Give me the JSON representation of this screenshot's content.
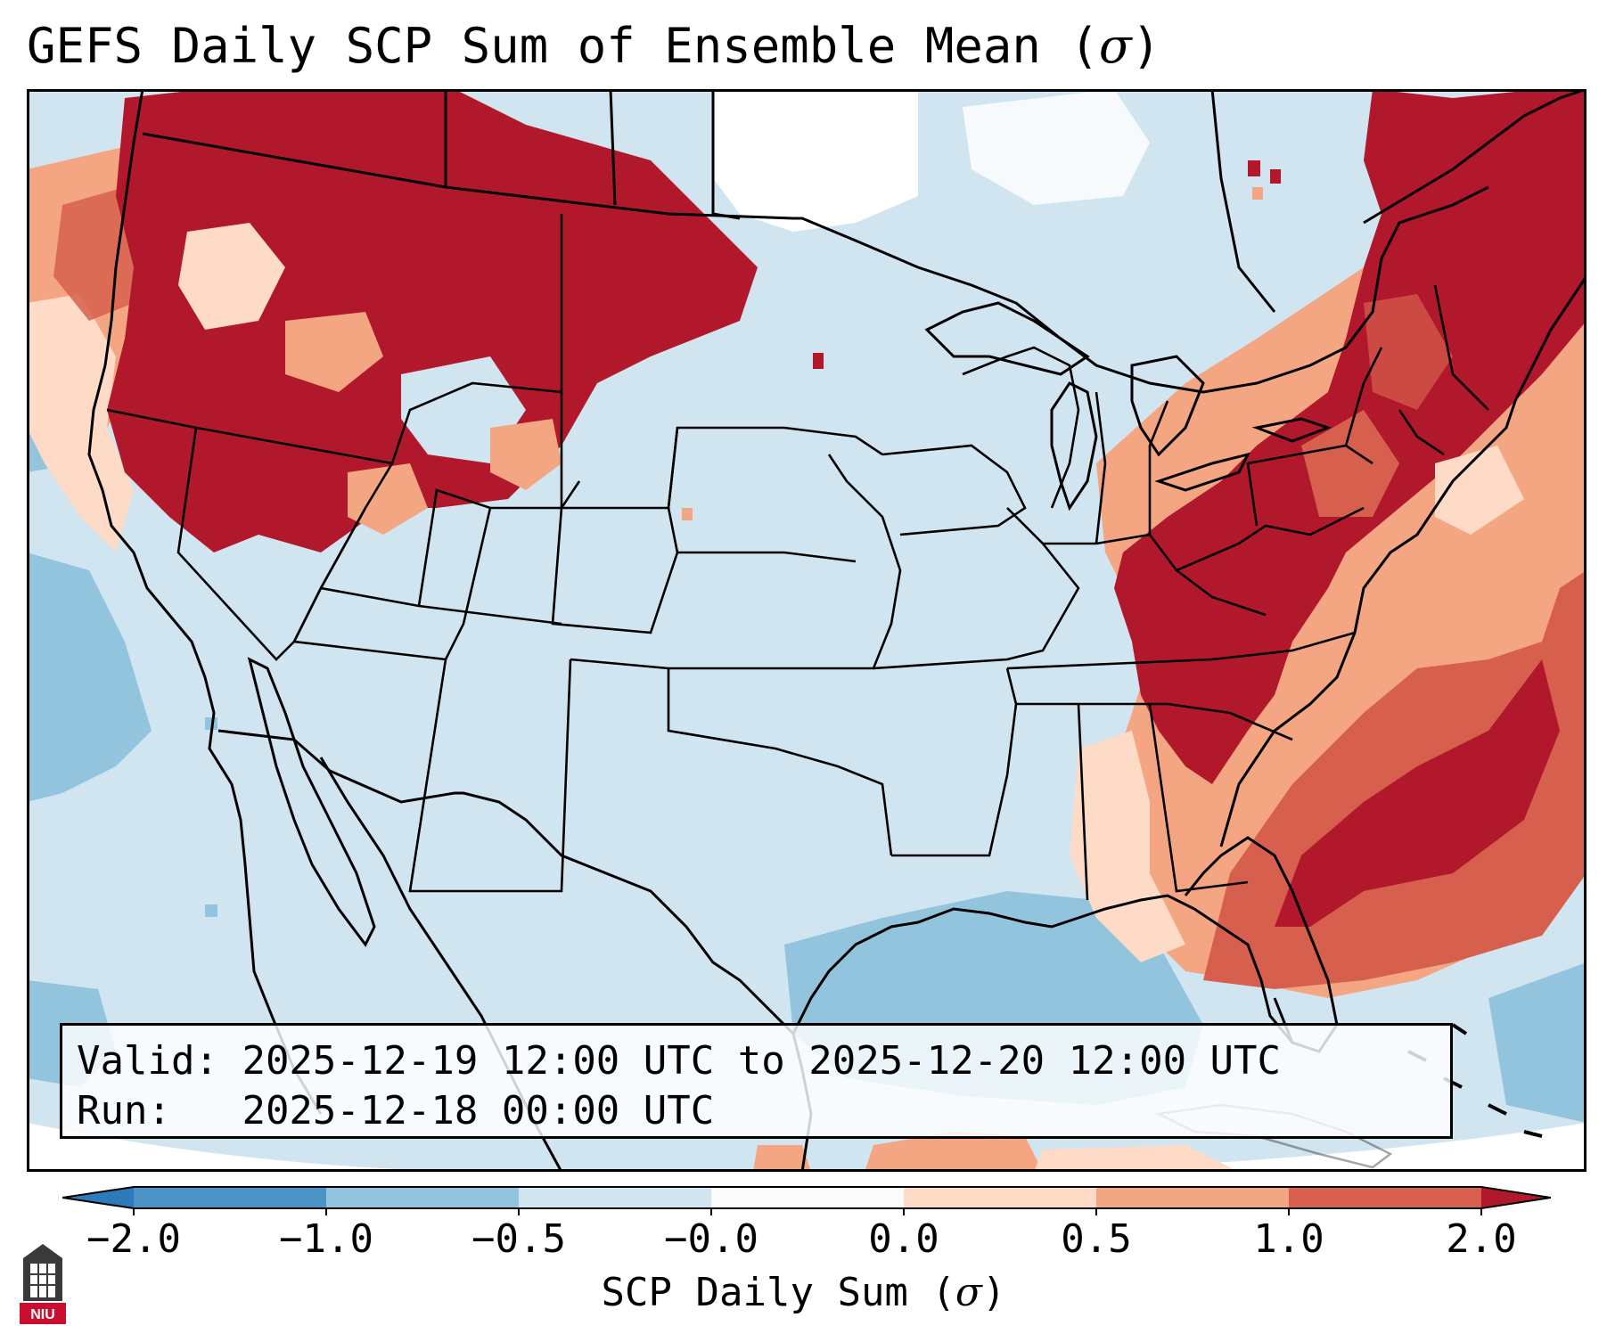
{
  "title": {
    "text": "GEFS Daily SCP Sum of Ensemble Mean (",
    "symbol": "σ",
    "close": ")"
  },
  "info_box": {
    "valid_label": "Valid:",
    "valid_value": "2025-12-19 12:00 UTC to 2025-12-20 12:00 UTC",
    "run_label": "Run:",
    "run_value": "2025-12-18 00:00 UTC"
  },
  "colorbar": {
    "label": "SCP Daily Sum (",
    "symbol": "σ",
    "close": ")",
    "ticks": [
      "−2.0",
      "−1.0",
      "−0.5",
      "−0.0",
      "0.0",
      "0.5",
      "1.0",
      "2.0"
    ],
    "bin_colors": [
      "#2b7bba",
      "#4b93c6",
      "#93c4de",
      "#d1e5f0",
      "#fbfbfb",
      "#fddbc7",
      "#f4a582",
      "#d6604d",
      "#b2182b"
    ]
  },
  "map_colors": {
    "background": "#d1e5f0",
    "blue_med": "#93c4de",
    "blue_dark": "#6aa8d0",
    "neutral": "#ffffff",
    "pink_light": "#fddbc7",
    "salmon": "#f4a582",
    "red_med": "#d6604d",
    "red_dark": "#b2182b",
    "boundaries": "#000000"
  },
  "logo": {
    "text": "NIU",
    "color": "#c8102e"
  }
}
